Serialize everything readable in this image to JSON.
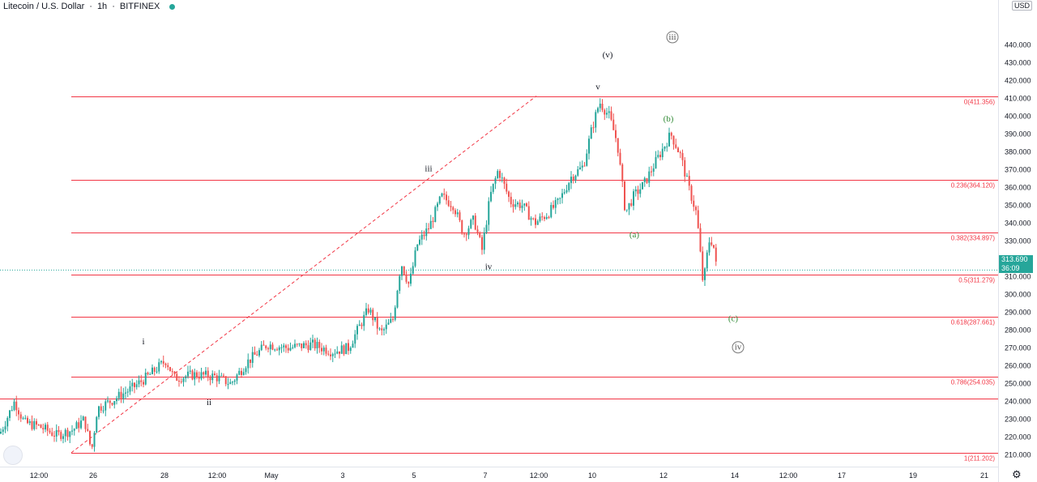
{
  "header": {
    "symbol": "Litecoin / U.S. Dollar",
    "interval": "1h",
    "exchange": "BITFINEX",
    "currency": "USD"
  },
  "current_price": {
    "value": "313.690",
    "countdown": "36:09"
  },
  "colors": {
    "up": "#26a69a",
    "down": "#ef5350",
    "fib": "#f23645",
    "wave_alt": "#388e3c"
  },
  "chart_data": {
    "type": "candlestick",
    "title": "Litecoin / U.S. Dollar · 1h · BITFINEX",
    "ylim": [
      205,
      447
    ],
    "yticks": [
      210,
      220,
      230,
      240,
      250,
      260,
      270,
      280,
      290,
      300,
      310,
      320,
      330,
      340,
      350,
      360,
      370,
      380,
      390,
      400,
      410,
      420,
      430,
      440
    ],
    "xticks": [
      "12:00",
      "26",
      "28",
      "12:00",
      "May",
      "3",
      "5",
      "7",
      "12:00",
      "10",
      "12",
      "14",
      "12:00",
      "17",
      "19",
      "21"
    ],
    "price_path": [
      [
        0,
        222
      ],
      [
        18,
        240
      ],
      [
        30,
        228
      ],
      [
        48,
        226
      ],
      [
        70,
        221
      ],
      [
        90,
        224
      ],
      [
        104,
        230
      ],
      [
        113,
        212
      ],
      [
        120,
        236
      ],
      [
        140,
        241
      ],
      [
        165,
        248
      ],
      [
        185,
        255
      ],
      [
        205,
        263
      ],
      [
        215,
        253
      ],
      [
        240,
        255
      ],
      [
        265,
        254
      ],
      [
        285,
        250
      ],
      [
        305,
        262
      ],
      [
        330,
        272
      ],
      [
        355,
        270
      ],
      [
        385,
        272
      ],
      [
        410,
        268
      ],
      [
        430,
        270
      ],
      [
        455,
        292
      ],
      [
        470,
        278
      ],
      [
        485,
        286
      ],
      [
        495,
        318
      ],
      [
        505,
        305
      ],
      [
        515,
        328
      ],
      [
        530,
        338
      ],
      [
        545,
        355
      ],
      [
        560,
        350
      ],
      [
        572,
        334
      ],
      [
        585,
        342
      ],
      [
        595,
        325
      ],
      [
        605,
        355
      ],
      [
        615,
        370
      ],
      [
        630,
        352
      ],
      [
        645,
        350
      ],
      [
        660,
        340
      ],
      [
        675,
        345
      ],
      [
        690,
        352
      ],
      [
        705,
        366
      ],
      [
        720,
        372
      ],
      [
        730,
        392
      ],
      [
        740,
        408
      ],
      [
        752,
        400
      ],
      [
        762,
        385
      ],
      [
        772,
        346
      ],
      [
        782,
        355
      ],
      [
        795,
        362
      ],
      [
        810,
        375
      ],
      [
        828,
        390
      ],
      [
        840,
        378
      ],
      [
        850,
        360
      ],
      [
        860,
        345
      ],
      [
        868,
        305
      ],
      [
        875,
        330
      ],
      [
        880,
        330
      ],
      [
        885,
        312
      ]
    ],
    "fib_levels": [
      {
        "ratio": "0",
        "price": 411.356,
        "label": "0(411.356)"
      },
      {
        "ratio": "0.236",
        "price": 364.12,
        "label": "0.236(364.120)"
      },
      {
        "ratio": "0.382",
        "price": 334.897,
        "label": "0.382(334.897)"
      },
      {
        "ratio": "0.5",
        "price": 311.279,
        "label": "0.5(311.279)"
      },
      {
        "ratio": "0.618",
        "price": 287.661,
        "label": "0.618(287.661)"
      },
      {
        "ratio": "0.786",
        "price": 254.035,
        "label": "0.786(254.035)"
      },
      {
        "ratio": "1",
        "price": 211.202,
        "label": "1(211.202)"
      }
    ],
    "horizontal_line": 241.5,
    "wave_labels": [
      {
        "text": "i",
        "price": 272,
        "color": "#131722",
        "circled": false
      },
      {
        "text": "ii",
        "price": 238,
        "color": "#131722",
        "circled": false
      },
      {
        "text": "iii",
        "price": 369,
        "color": "#131722",
        "circled": false
      },
      {
        "text": "iv",
        "price": 314,
        "color": "#131722",
        "circled": false
      },
      {
        "text": "v",
        "price": 415,
        "color": "#131722",
        "circled": false
      },
      {
        "text": "(v)",
        "price": 433,
        "color": "#131722",
        "circled": false
      },
      {
        "text": "iii",
        "price": 443,
        "color": "#555",
        "circled": true
      },
      {
        "text": "(a)",
        "price": 332,
        "color": "#388e3c",
        "circled": false
      },
      {
        "text": "(b)",
        "price": 397,
        "color": "#388e3c",
        "circled": false
      },
      {
        "text": "(c)",
        "price": 285,
        "color": "#388e3c",
        "circled": false
      },
      {
        "text": "iv",
        "price": 269,
        "color": "#555",
        "circled": true
      }
    ]
  }
}
